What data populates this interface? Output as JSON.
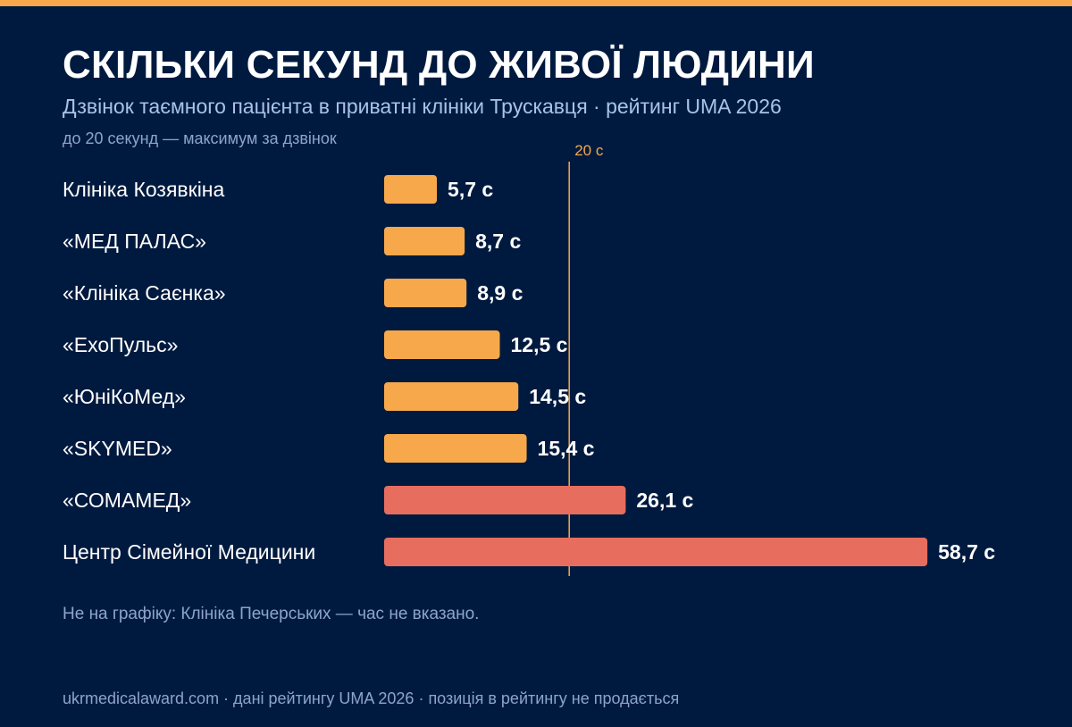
{
  "header": {
    "title": "СКІЛЬКИ СЕКУНД ДО ЖИВОЇ ЛЮДИНИ",
    "subtitle": "Дзвінок таємного пацієнта в приватні клініки Трускавця · рейтинг UMA 2026",
    "note": "до 20 секунд — максимум за дзвінок"
  },
  "footnote": "Не на графіку: Клініка Печерських — час не вказано.",
  "footer": "ukrmedicalaward.com · дані рейтингу UMA 2026 · позиція в рейтингу не продається",
  "colors": {
    "background": "#001a3f",
    "accent": "#f7a84b",
    "within_limit": "#f7a84b",
    "over_limit": "#e76d5e",
    "label_text": "#ffffff",
    "muted_text": "#8ea4c8"
  },
  "chart_data": {
    "type": "bar",
    "orientation": "horizontal",
    "categories": [
      "Клініка Козявкіна",
      "«МЕД ПАЛАС»",
      "«Клініка Саєнка»",
      "«ЕхоПульс»",
      "«ЮніКоМед»",
      "«SKYMED»",
      "«СОМАМЕД»",
      "Центр Сімейної Медицини"
    ],
    "values": [
      5.7,
      8.7,
      8.9,
      12.5,
      14.5,
      15.4,
      26.1,
      58.7
    ],
    "value_labels": [
      "5,7 с",
      "8,7 с",
      "8,9 с",
      "12,5 с",
      "14,5 с",
      "15,4 с",
      "26,1 с",
      "58,7 с"
    ],
    "unit": "с",
    "threshold": {
      "value": 20,
      "label": "20 с"
    },
    "xlim": [
      0,
      58.7
    ],
    "grid": false,
    "legend": "none"
  }
}
